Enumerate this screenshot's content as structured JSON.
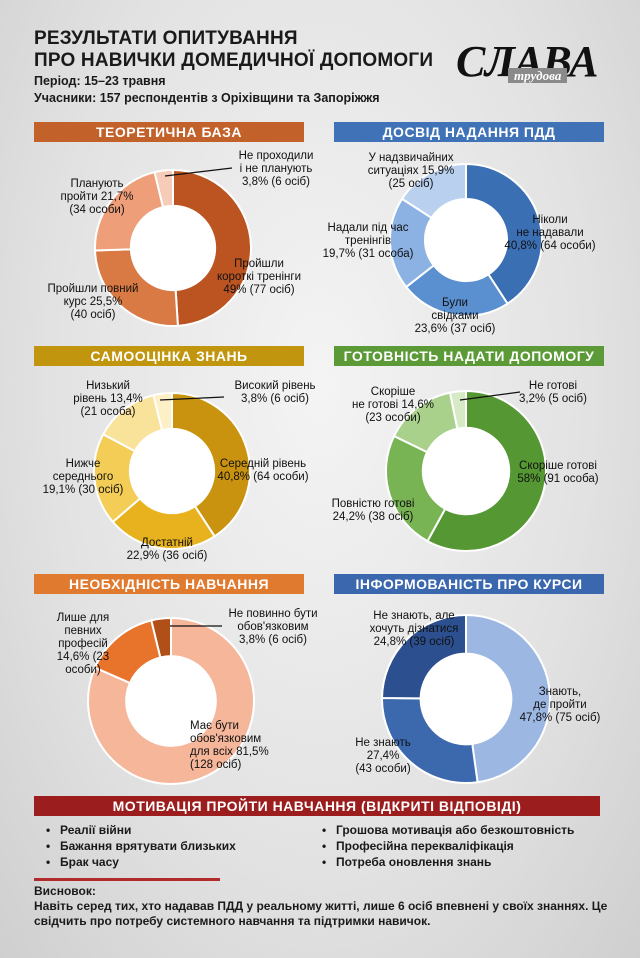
{
  "header": {
    "title_line1": "РЕЗУЛЬТАТИ ОПИТУВАННЯ",
    "title_line2": "ПРО НАВИЧКИ ДОМЕДИЧНОЇ ДОПОМОГИ",
    "period": "Період: 15–23 травня",
    "participants": "Учасники: 157 респондентів з Оріхівщини та Запоріжжя"
  },
  "logo": {
    "main": "СЛАВА",
    "sub": "трудова"
  },
  "chart_data": [
    {
      "type": "pie",
      "title": "ТЕОРЕТИЧНА БАЗА",
      "banner_color": "#c3612a",
      "slices": [
        {
          "label": "Пройшли короткі тренінги 49% (77 осіб)",
          "value": 49.0,
          "color": "#bc5422"
        },
        {
          "label": "Пройшли повний курс 25,5% (40 осіб)",
          "value": 25.5,
          "color": "#d97a45"
        },
        {
          "label": "Планують пройти 21,7% (34 особи)",
          "value": 21.7,
          "color": "#ee9f7a"
        },
        {
          "label": "Не проходили і не планують 3,8% (6 осіб)",
          "value": 3.8,
          "color": "#f6cbb8"
        }
      ]
    },
    {
      "type": "pie",
      "title": "ДОСВІД НАДАННЯ ПДД",
      "banner_color": "#3f72b6",
      "slices": [
        {
          "label": "Ніколи не надавали 40,8% (64 особи)",
          "value": 40.8,
          "color": "#3b6fb3"
        },
        {
          "label": "Були свідками 23,6% (37 осіб)",
          "value": 23.6,
          "color": "#5a8fd0"
        },
        {
          "label": "Надали під час тренінгів 19,7% (31 особа)",
          "value": 19.7,
          "color": "#8bb2e2"
        },
        {
          "label": "У надзвичайних ситуаціях 15,9% (25 осіб)",
          "value": 15.9,
          "color": "#b9d0ef"
        }
      ]
    },
    {
      "type": "pie",
      "title": "САМООЦІНКА ЗНАНЬ",
      "banner_color": "#c1950e",
      "slices": [
        {
          "label": "Середній рівень 40,8% (64 особи)",
          "value": 40.8,
          "color": "#c9920f"
        },
        {
          "label": "Достатній 22,9% (36 осіб)",
          "value": 22.9,
          "color": "#e7b21e"
        },
        {
          "label": "Нижче середнього 19,1% (30 осіб)",
          "value": 19.1,
          "color": "#f3cd55"
        },
        {
          "label": "Низький рівень 13,4% (21 особа)",
          "value": 13.4,
          "color": "#f9e29a"
        },
        {
          "label": "Високий рівень 3,8% (6 осіб)",
          "value": 3.8,
          "color": "#fdf0c6"
        }
      ]
    },
    {
      "type": "pie",
      "title": "ГОТОВНІСТЬ НАДАТИ ДОПОМОГУ",
      "banner_color": "#5b9a36",
      "slices": [
        {
          "label": "Скоріше готові 58% (91 особа)",
          "value": 58.0,
          "color": "#559733"
        },
        {
          "label": "Повністю готові 24,2% (38 осіб)",
          "value": 24.2,
          "color": "#78b453"
        },
        {
          "label": "Скоріше не готові 14,6% (23 особи)",
          "value": 14.6,
          "color": "#a9d18c"
        },
        {
          "label": "Не готові 3,2% (5 осіб)",
          "value": 3.2,
          "color": "#d6eac6"
        }
      ]
    },
    {
      "type": "pie",
      "title": "НЕОБХІДНІСТЬ НАВЧАННЯ",
      "banner_color": "#e07a2e",
      "slices": [
        {
          "label": "Має бути обов'язковим для всіх 81,5% (128 осіб)",
          "value": 81.5,
          "color": "#f5b69a"
        },
        {
          "label": "Лише для певних професій 14,6% (23 особи)",
          "value": 14.6,
          "color": "#e8742c"
        },
        {
          "label": "Не повинно бути обов'язковим 3,8% (6 осіб)",
          "value": 3.8,
          "color": "#b04f17"
        }
      ]
    },
    {
      "type": "pie",
      "title": "ІНФОРМОВАНІСТЬ ПРО КУРСИ",
      "banner_color": "#3a67ad",
      "slices": [
        {
          "label": "Знають, де пройти 47,8% (75 осіб)",
          "value": 47.8,
          "color": "#9cb8e2"
        },
        {
          "label": "Не знають 27,4% (43 особи)",
          "value": 27.4,
          "color": "#3c68ae"
        },
        {
          "label": "Не знають, але хочуть дізнатися 24,8% (39 осіб)",
          "value": 24.8,
          "color": "#2c4f8f"
        }
      ]
    }
  ],
  "motivation": {
    "title": "МОТИВАЦІЯ ПРОЙТИ НАВЧАННЯ (ВІДКРИТІ ВІДПОВІДІ)",
    "left": [
      "Реалії війни",
      "Бажання врятувати близьких",
      "Брак часу"
    ],
    "right": [
      "Грошова мотивація або безкоштовність",
      "Професійна перекваліфікація",
      "Потреба оновлення знань"
    ]
  },
  "conclusion": {
    "heading": "Висновок:",
    "text": "Навіть серед тих, хто надавав ПДД у реальному житті, лише 6 осіб впевнені у своїх знаннях. Це свідчить про потребу системного навчання та підтримки навичок."
  }
}
